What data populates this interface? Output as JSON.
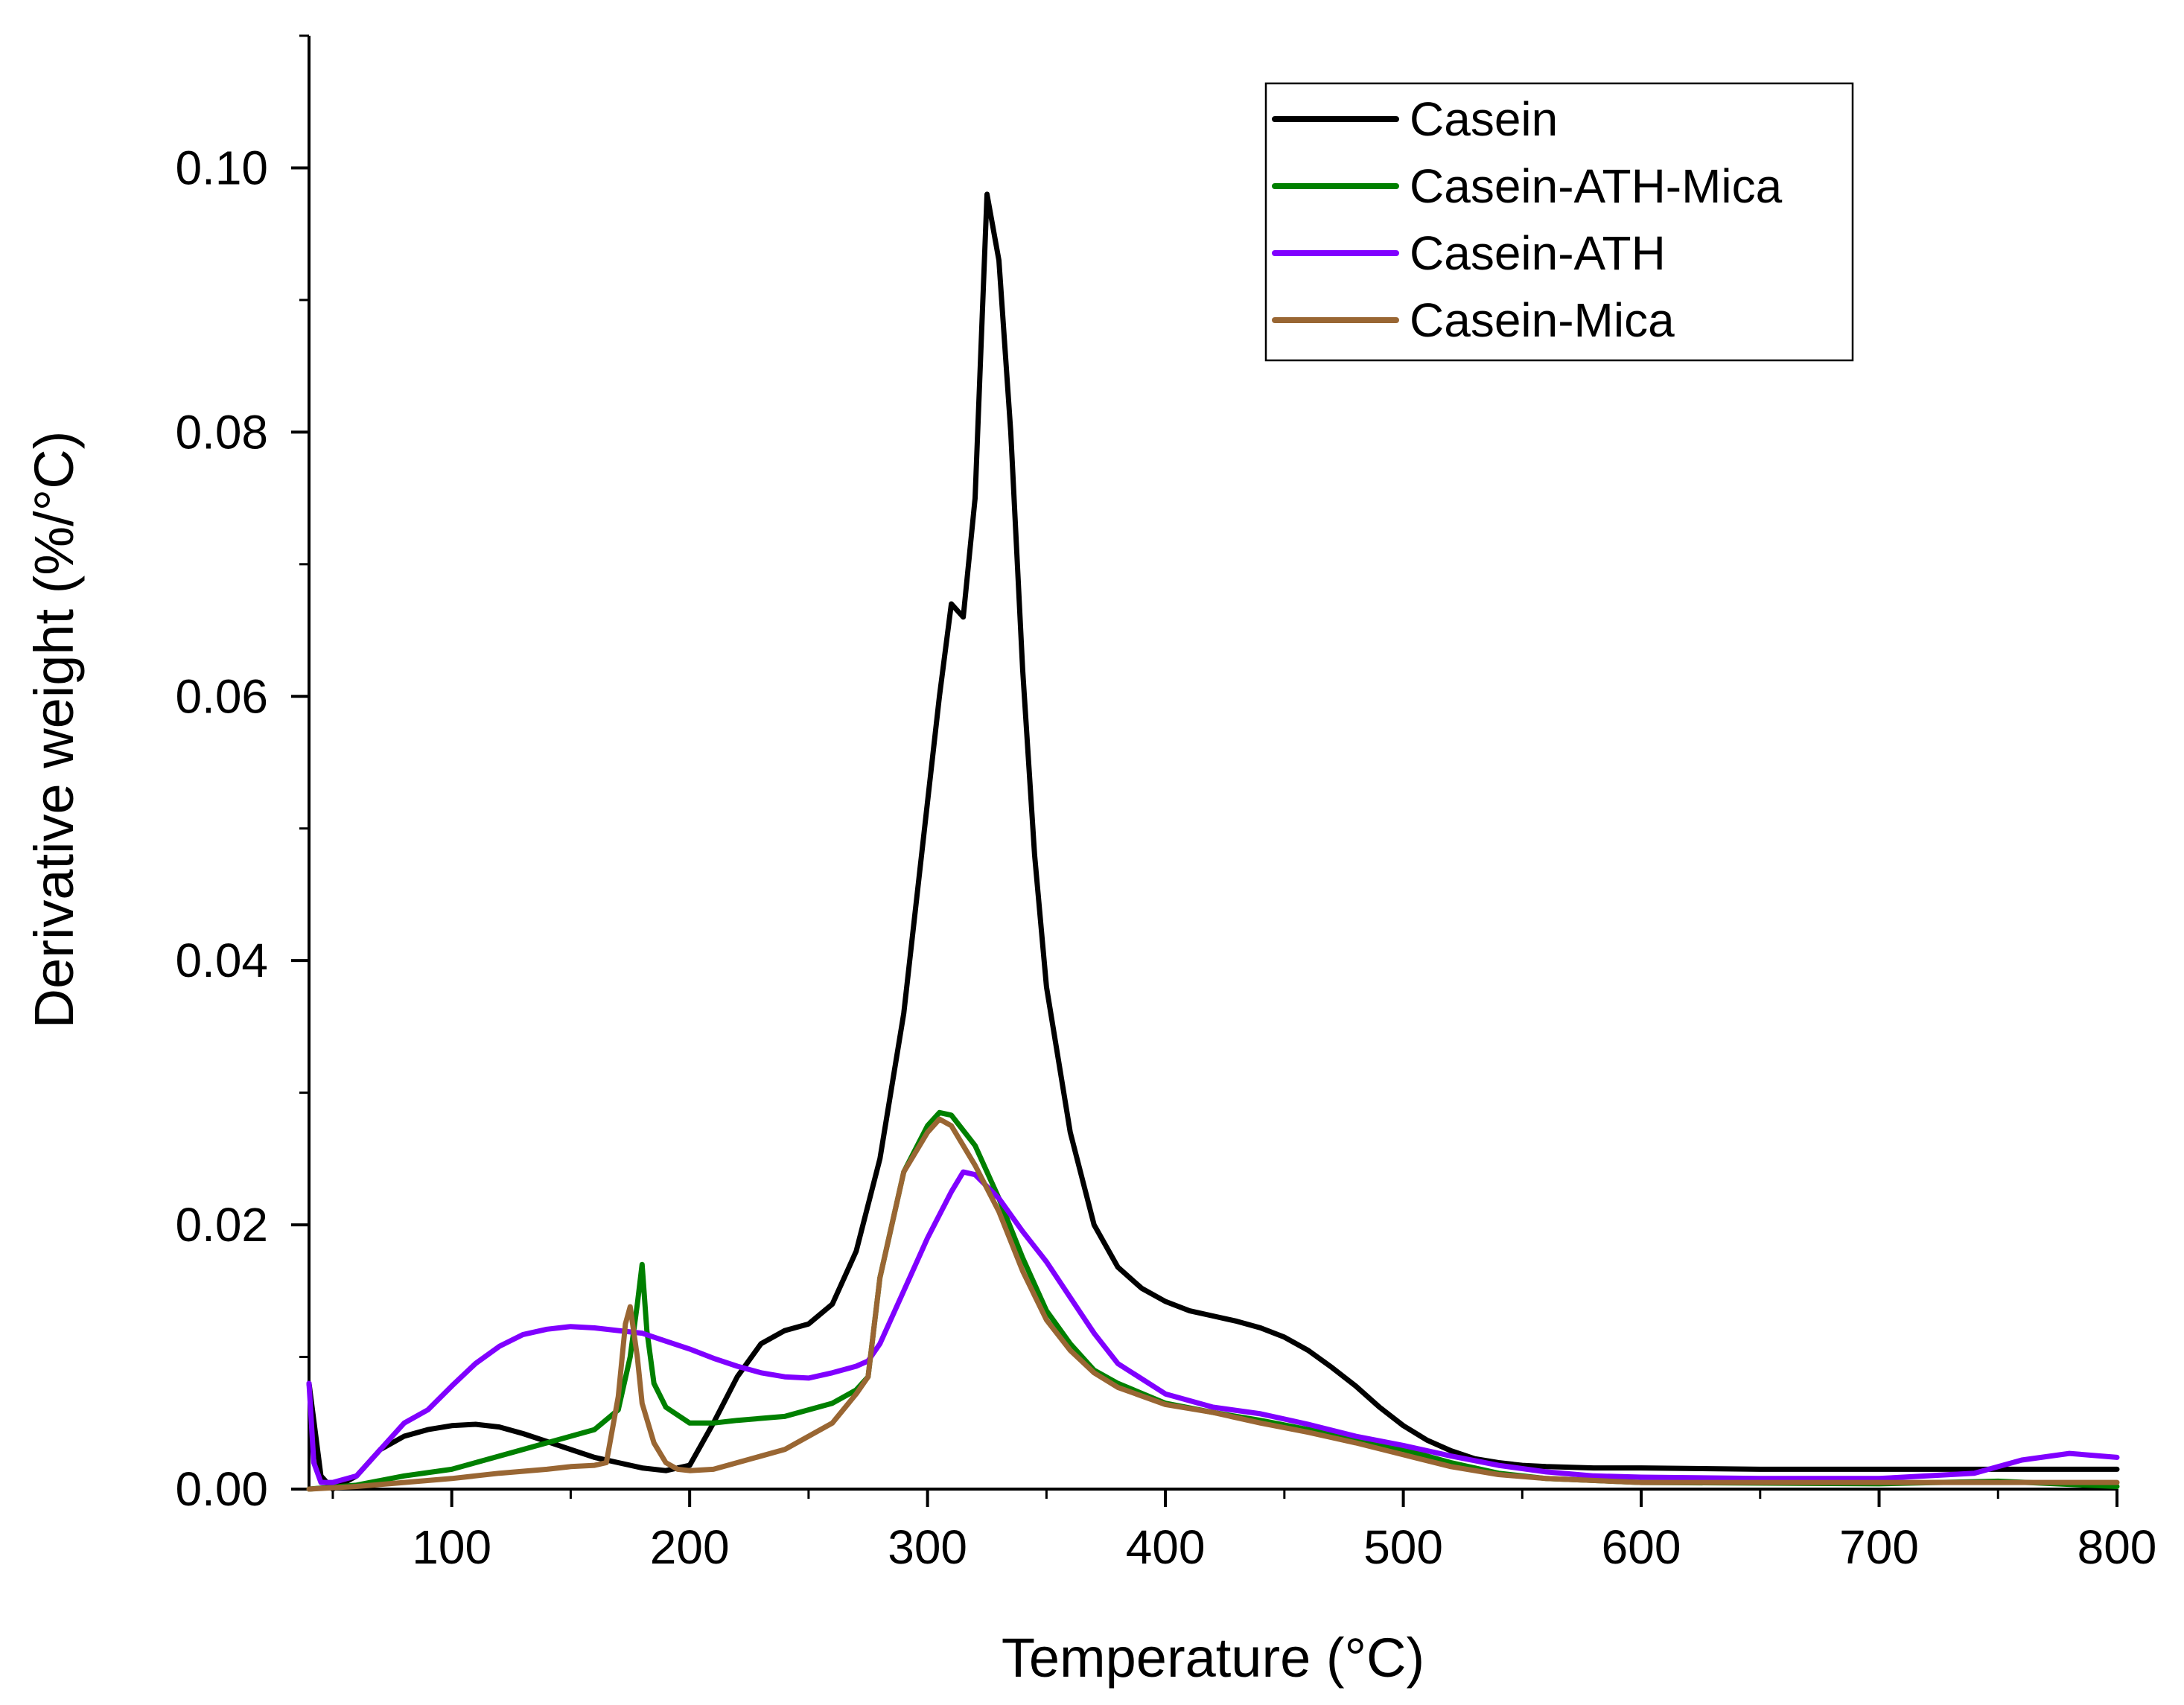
{
  "chart_data": {
    "type": "line",
    "title": "",
    "xlabel": "Temperature (°C)",
    "ylabel": "Derivative weight (%/°C)",
    "xlim": [
      40,
      800
    ],
    "ylim": [
      0,
      0.11
    ],
    "xticks": [
      100,
      200,
      300,
      400,
      500,
      600,
      700,
      800
    ],
    "yticks": [
      0.0,
      0.02,
      0.04,
      0.06,
      0.08,
      0.1
    ],
    "xtick_labels": [
      "100",
      "200",
      "300",
      "400",
      "500",
      "600",
      "700",
      "800"
    ],
    "ytick_labels": [
      "0.00",
      "0.02",
      "0.04",
      "0.06",
      "0.08",
      "0.10"
    ],
    "grid": false,
    "legend_position": "top-right",
    "series": [
      {
        "name": "Casein",
        "color": "#000000",
        "x": [
          40,
          45,
          50,
          55,
          60,
          70,
          80,
          90,
          100,
          110,
          120,
          130,
          140,
          150,
          160,
          170,
          180,
          190,
          200,
          210,
          220,
          230,
          240,
          250,
          260,
          270,
          280,
          290,
          300,
          305,
          310,
          315,
          320,
          325,
          330,
          335,
          340,
          345,
          350,
          360,
          370,
          380,
          390,
          400,
          410,
          420,
          430,
          440,
          450,
          460,
          470,
          480,
          490,
          500,
          510,
          520,
          530,
          540,
          550,
          560,
          580,
          600,
          650,
          700,
          750,
          800
        ],
        "y": [
          0.008,
          0.001,
          0.0,
          0.0005,
          0.001,
          0.003,
          0.004,
          0.0045,
          0.0048,
          0.0049,
          0.0047,
          0.0042,
          0.0036,
          0.003,
          0.0024,
          0.002,
          0.0016,
          0.0014,
          0.0018,
          0.005,
          0.0085,
          0.011,
          0.012,
          0.0125,
          0.014,
          0.018,
          0.025,
          0.036,
          0.052,
          0.06,
          0.067,
          0.066,
          0.075,
          0.098,
          0.093,
          0.08,
          0.062,
          0.048,
          0.038,
          0.027,
          0.02,
          0.0168,
          0.0152,
          0.0142,
          0.0135,
          0.0131,
          0.0127,
          0.0122,
          0.0115,
          0.0105,
          0.0092,
          0.0078,
          0.0062,
          0.0048,
          0.0037,
          0.0029,
          0.0023,
          0.002,
          0.0018,
          0.0017,
          0.0016,
          0.0016,
          0.0015,
          0.0015,
          0.0015,
          0.0015
        ]
      },
      {
        "name": "Casein-ATH-Mica",
        "color": "#008000",
        "x": [
          40,
          60,
          80,
          100,
          120,
          140,
          160,
          170,
          175,
          178,
          180,
          182,
          185,
          190,
          200,
          210,
          220,
          240,
          260,
          270,
          275,
          280,
          290,
          300,
          305,
          310,
          320,
          330,
          340,
          350,
          360,
          370,
          380,
          400,
          420,
          440,
          460,
          480,
          500,
          520,
          540,
          560,
          600,
          700,
          750,
          800
        ],
        "y": [
          0.0,
          0.0003,
          0.001,
          0.0015,
          0.0025,
          0.0035,
          0.0045,
          0.006,
          0.01,
          0.014,
          0.017,
          0.012,
          0.008,
          0.0062,
          0.005,
          0.005,
          0.0052,
          0.0055,
          0.0065,
          0.0075,
          0.0085,
          0.016,
          0.024,
          0.0275,
          0.0285,
          0.0283,
          0.026,
          0.022,
          0.0175,
          0.0135,
          0.011,
          0.009,
          0.008,
          0.0065,
          0.0058,
          0.0052,
          0.0045,
          0.0038,
          0.003,
          0.002,
          0.0012,
          0.0008,
          0.0005,
          0.0004,
          0.0006,
          0.0002
        ]
      },
      {
        "name": "Casein-ATH",
        "color": "#8000ff",
        "x": [
          40,
          42,
          45,
          50,
          60,
          70,
          80,
          90,
          100,
          110,
          120,
          130,
          140,
          150,
          160,
          170,
          180,
          190,
          200,
          210,
          220,
          230,
          240,
          250,
          260,
          270,
          275,
          280,
          290,
          300,
          310,
          315,
          320,
          330,
          340,
          350,
          360,
          370,
          380,
          400,
          420,
          440,
          460,
          480,
          500,
          520,
          540,
          560,
          580,
          600,
          650,
          700,
          740,
          760,
          780,
          800
        ],
        "y": [
          0.008,
          0.002,
          0.0005,
          0.0005,
          0.001,
          0.003,
          0.005,
          0.006,
          0.0078,
          0.0095,
          0.0108,
          0.0117,
          0.0121,
          0.0123,
          0.0122,
          0.012,
          0.0118,
          0.0112,
          0.0106,
          0.0099,
          0.0093,
          0.0088,
          0.0085,
          0.0084,
          0.0088,
          0.0093,
          0.0097,
          0.011,
          0.015,
          0.019,
          0.0225,
          0.024,
          0.0238,
          0.022,
          0.0195,
          0.0172,
          0.0145,
          0.0118,
          0.0095,
          0.0072,
          0.0062,
          0.0057,
          0.0049,
          0.004,
          0.0033,
          0.0025,
          0.0018,
          0.0013,
          0.001,
          0.0009,
          0.0008,
          0.0008,
          0.0012,
          0.0022,
          0.0027,
          0.0024
        ]
      },
      {
        "name": "Casein-Mica",
        "color": "#996633",
        "x": [
          40,
          60,
          80,
          100,
          120,
          140,
          150,
          160,
          165,
          170,
          173,
          175,
          178,
          180,
          185,
          190,
          195,
          200,
          210,
          220,
          240,
          260,
          270,
          275,
          280,
          290,
          300,
          305,
          310,
          320,
          330,
          340,
          350,
          360,
          370,
          380,
          400,
          420,
          440,
          460,
          480,
          500,
          520,
          540,
          560,
          600,
          700,
          800
        ],
        "y": [
          0.0,
          0.0002,
          0.0005,
          0.0008,
          0.0012,
          0.0015,
          0.0017,
          0.0018,
          0.002,
          0.007,
          0.0125,
          0.0138,
          0.01,
          0.0065,
          0.0035,
          0.002,
          0.0015,
          0.0014,
          0.0015,
          0.002,
          0.003,
          0.005,
          0.0072,
          0.0085,
          0.016,
          0.024,
          0.027,
          0.028,
          0.0275,
          0.0245,
          0.021,
          0.0165,
          0.0128,
          0.0105,
          0.0088,
          0.0077,
          0.0064,
          0.0058,
          0.005,
          0.0043,
          0.0035,
          0.0026,
          0.0017,
          0.0011,
          0.0008,
          0.0005,
          0.0005,
          0.0005
        ]
      }
    ]
  }
}
